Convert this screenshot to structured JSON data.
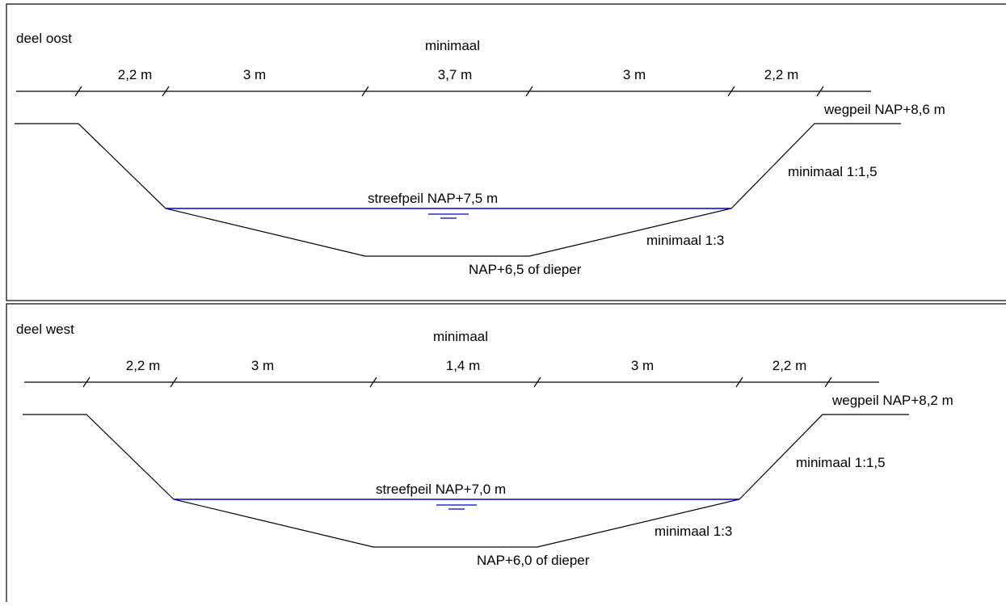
{
  "panels": [
    {
      "label": "deel oost",
      "width_caption": "minimaal",
      "dimensions": [
        "2,2 m",
        "3 m",
        "3,7 m",
        "3 m",
        "2,2 m"
      ],
      "road_level": "wegpeil NAP+8,6 m",
      "outer_slope": "minimaal 1:1,5",
      "target_level": "streefpeil NAP+7,5 m",
      "inner_slope": "minimaal 1:3",
      "bottom_level": "NAP+6,5 of dieper"
    },
    {
      "label": "deel west",
      "width_caption": "minimaal",
      "dimensions": [
        "2,2 m",
        "3 m",
        "1,4 m",
        "3 m",
        "2,2 m"
      ],
      "road_level": "wegpeil NAP+8,2 m",
      "outer_slope": "minimaal 1:1,5",
      "target_level": "streefpeil NAP+7,0 m",
      "inner_slope": "minimaal 1:3",
      "bottom_level": "NAP+6,0 of dieper"
    }
  ]
}
